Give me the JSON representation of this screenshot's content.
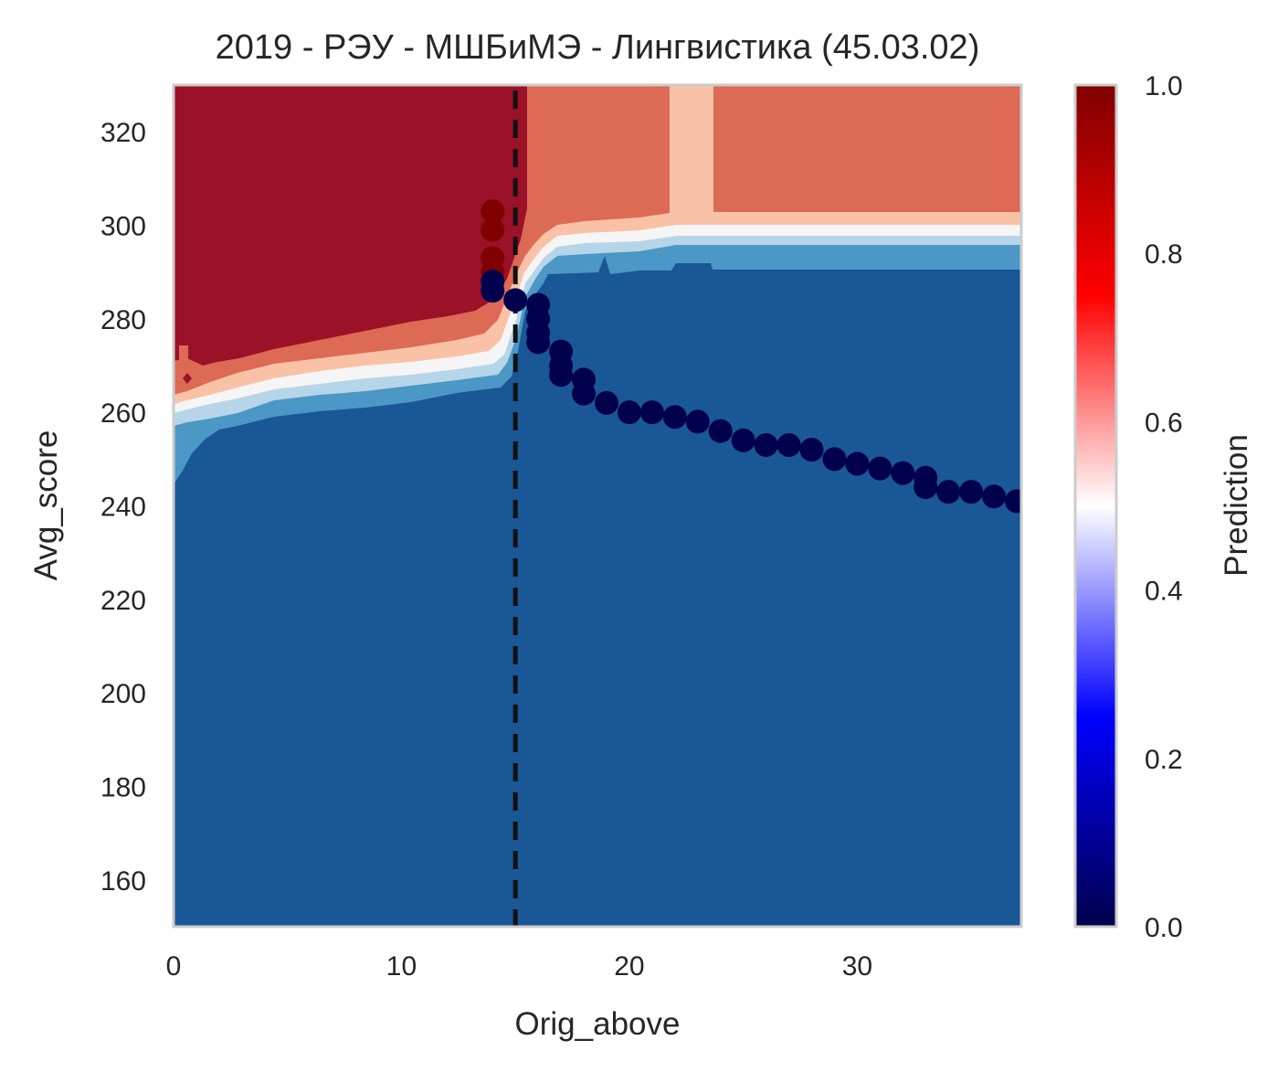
{
  "chart_data": {
    "type": "heatmap",
    "title": "2019 - РЭУ - МШБиМЭ - Лингвистика (45.03.02)",
    "xlabel": "Orig_above",
    "ylabel": "Avg_score",
    "xlim": [
      0,
      37.2
    ],
    "ylim": [
      150,
      330
    ],
    "x_ticks": [
      "0",
      "10",
      "20",
      "30"
    ],
    "y_ticks": [
      "160",
      "180",
      "200",
      "220",
      "240",
      "260",
      "280",
      "300",
      "320"
    ],
    "grid": false,
    "colorbar": {
      "label": "Prediction",
      "range": [
        0,
        1
      ],
      "ticks": [
        "0.0",
        "0.2",
        "0.4",
        "0.6",
        "0.8",
        "1.0"
      ],
      "colormap": "seismic"
    },
    "reference_line": {
      "x": 15,
      "style": "dashed",
      "color": "#111111"
    },
    "contour_levels": [
      {
        "level": "0.9-1.0",
        "color": "#9b1127"
      },
      {
        "level": "0.7-0.8",
        "color": "#dc6a55"
      },
      {
        "level": "0.6-0.7",
        "color": "#f9c2a7"
      },
      {
        "level": "0.5-0.6",
        "color": "#f5f5f5"
      },
      {
        "level": "0.3-0.4",
        "color": "#b7d5e8"
      },
      {
        "level": "0.2-0.3",
        "color": "#4b97c5"
      },
      {
        "level": "0.0-0.1",
        "color": "#1a5796"
      }
    ],
    "points": [
      {
        "x": 14,
        "y": 303,
        "pred": 0.95
      },
      {
        "x": 14,
        "y": 299,
        "pred": 0.95
      },
      {
        "x": 14,
        "y": 293,
        "pred": 0.95
      },
      {
        "x": 14,
        "y": 290,
        "pred": 0.9
      },
      {
        "x": 14,
        "y": 288,
        "pred": 0.05
      },
      {
        "x": 14,
        "y": 286,
        "pred": 0.02
      },
      {
        "x": 15,
        "y": 284,
        "pred": 0.02
      },
      {
        "x": 16,
        "y": 283,
        "pred": 0.02
      },
      {
        "x": 16,
        "y": 280,
        "pred": 0.02
      },
      {
        "x": 16,
        "y": 277,
        "pred": 0.02
      },
      {
        "x": 16,
        "y": 275,
        "pred": 0.02
      },
      {
        "x": 17,
        "y": 273,
        "pred": 0.02
      },
      {
        "x": 17,
        "y": 270,
        "pred": 0.02
      },
      {
        "x": 17,
        "y": 268,
        "pred": 0.02
      },
      {
        "x": 18,
        "y": 267,
        "pred": 0.02
      },
      {
        "x": 18,
        "y": 264,
        "pred": 0.02
      },
      {
        "x": 19,
        "y": 262,
        "pred": 0.02
      },
      {
        "x": 20,
        "y": 260,
        "pred": 0.02
      },
      {
        "x": 21,
        "y": 260,
        "pred": 0.02
      },
      {
        "x": 22,
        "y": 259,
        "pred": 0.02
      },
      {
        "x": 23,
        "y": 258,
        "pred": 0.02
      },
      {
        "x": 24,
        "y": 256,
        "pred": 0.02
      },
      {
        "x": 25,
        "y": 254,
        "pred": 0.02
      },
      {
        "x": 26,
        "y": 253,
        "pred": 0.02
      },
      {
        "x": 27,
        "y": 253,
        "pred": 0.02
      },
      {
        "x": 28,
        "y": 252,
        "pred": 0.02
      },
      {
        "x": 29,
        "y": 250,
        "pred": 0.02
      },
      {
        "x": 30,
        "y": 249,
        "pred": 0.02
      },
      {
        "x": 31,
        "y": 248,
        "pred": 0.02
      },
      {
        "x": 32,
        "y": 247,
        "pred": 0.02
      },
      {
        "x": 33,
        "y": 246,
        "pred": 0.02
      },
      {
        "x": 33,
        "y": 244,
        "pred": 0.02
      },
      {
        "x": 34,
        "y": 243,
        "pred": 0.02
      },
      {
        "x": 35,
        "y": 243,
        "pred": 0.02
      },
      {
        "x": 36,
        "y": 242,
        "pred": 0.02
      },
      {
        "x": 37,
        "y": 241,
        "pred": 0.02
      }
    ]
  }
}
